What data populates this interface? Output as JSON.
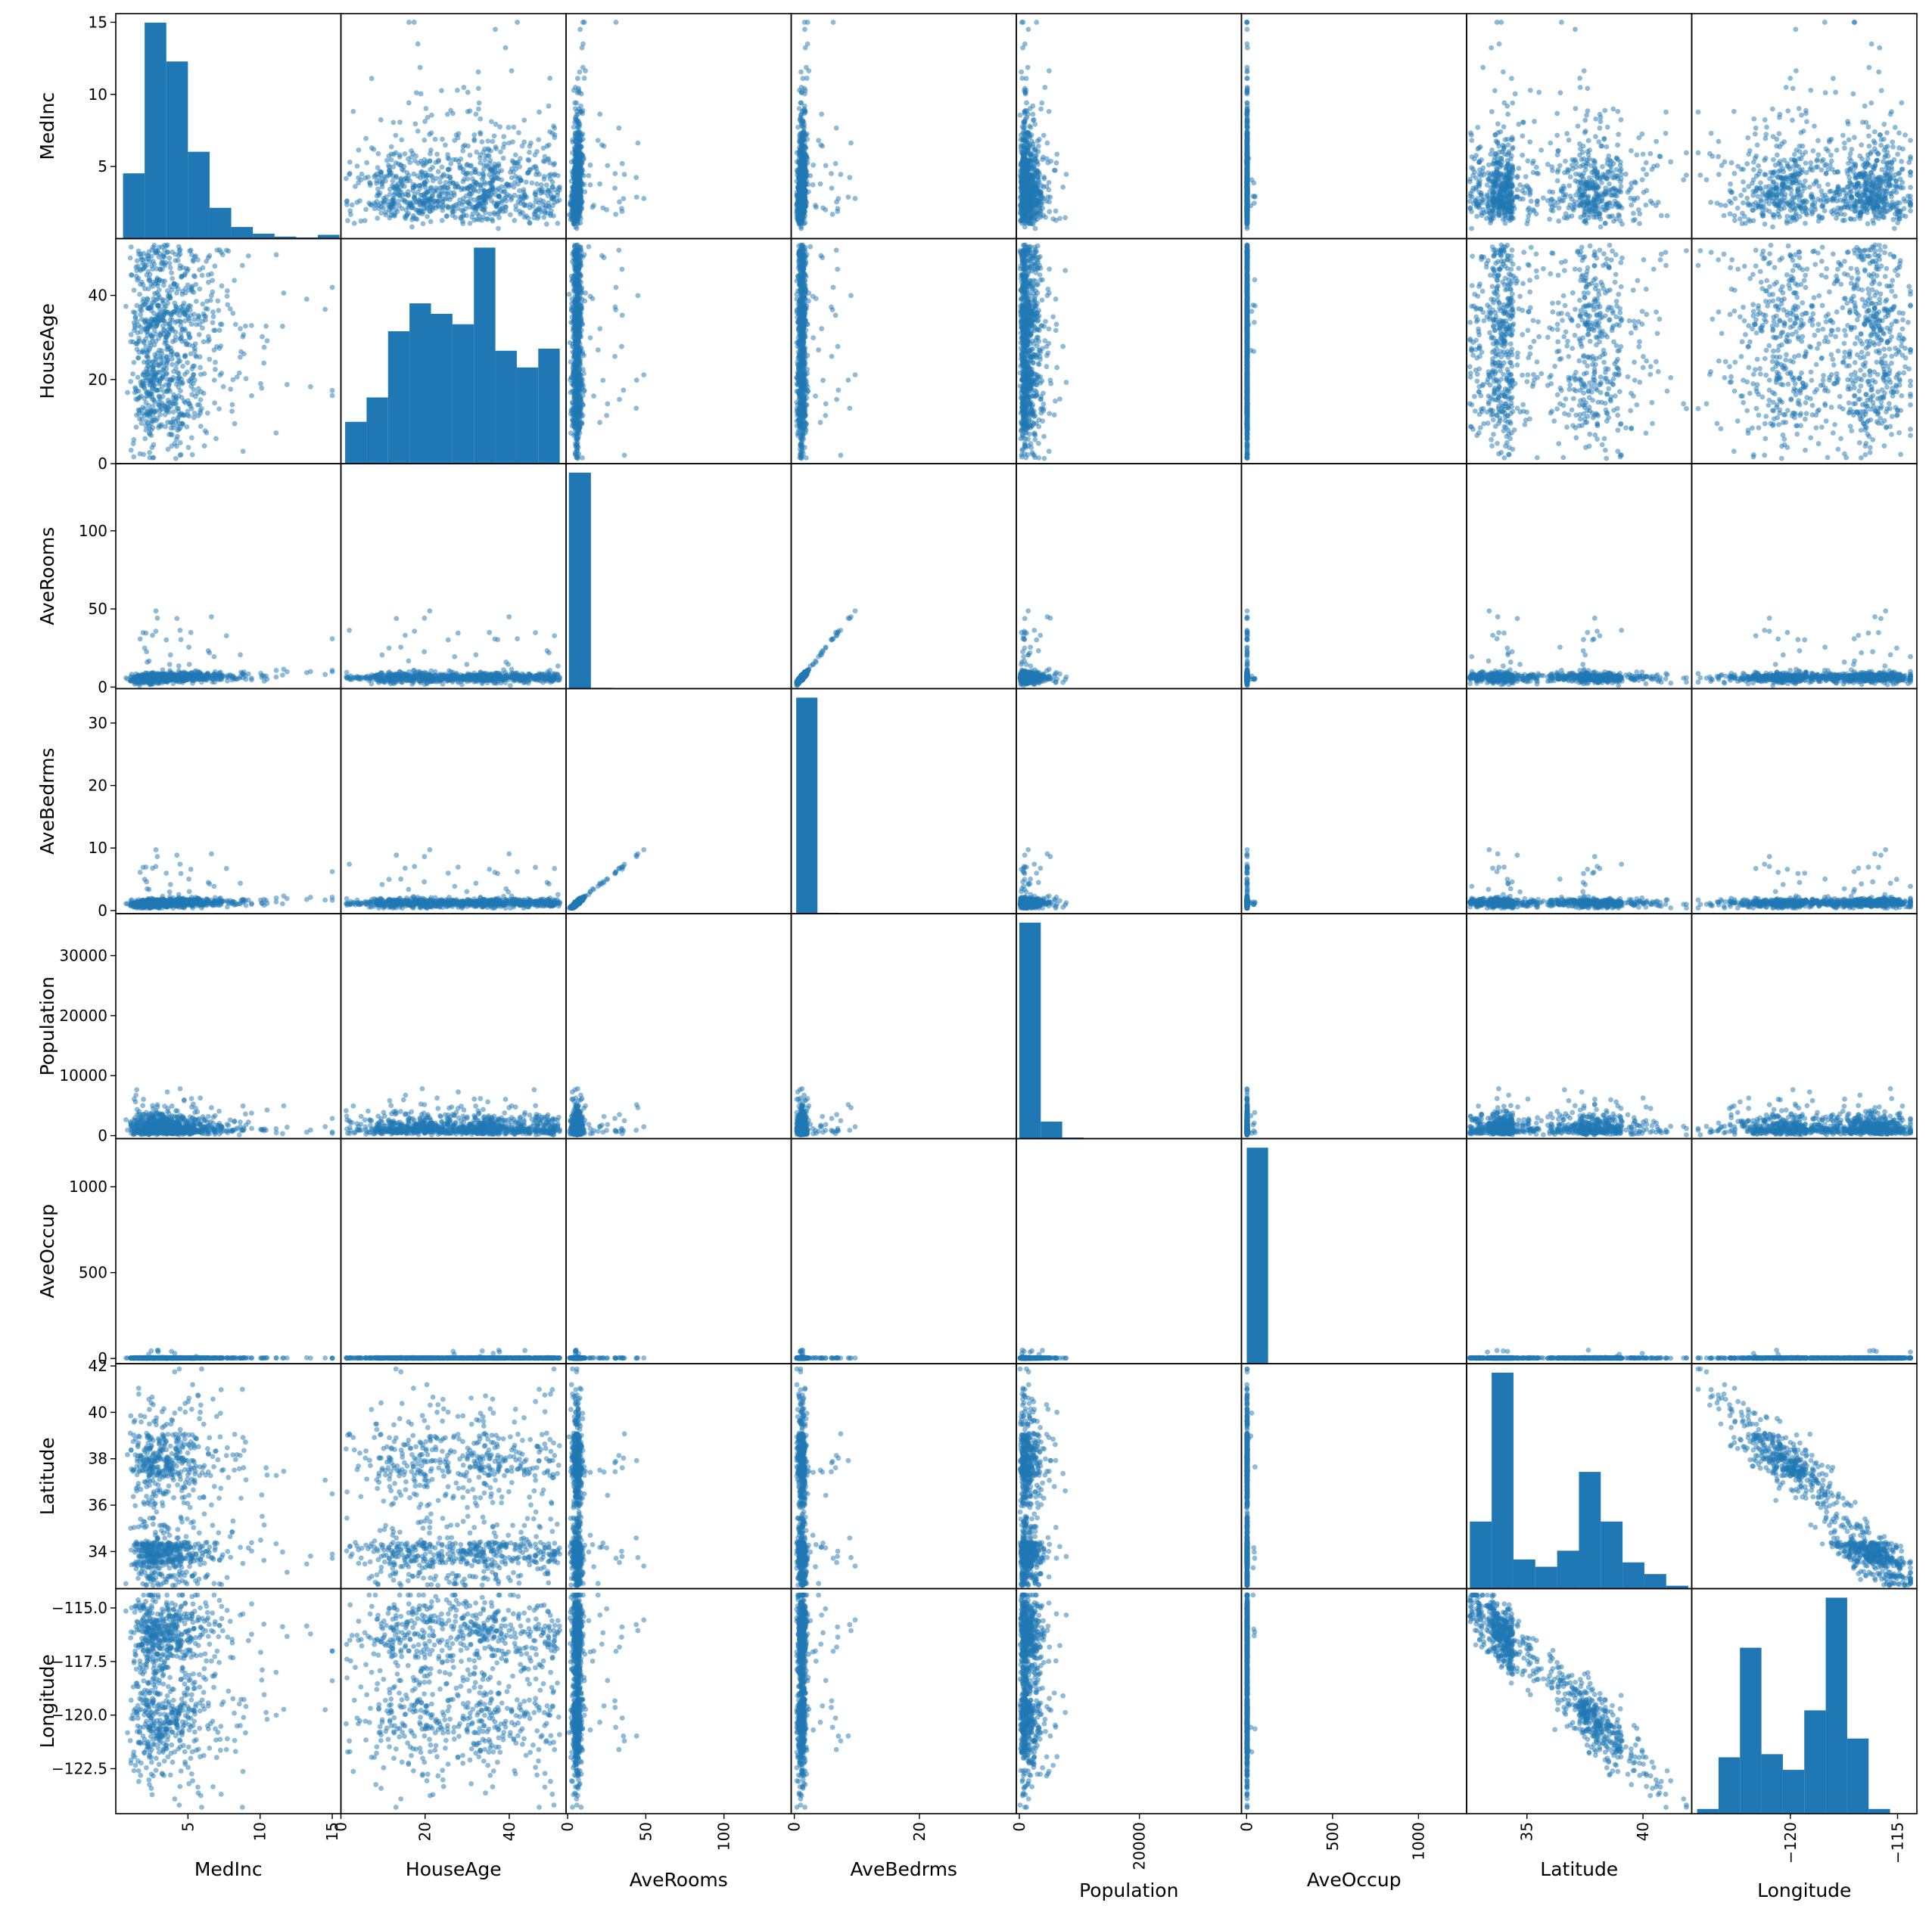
{
  "chart_data": {
    "type": "scatter_matrix",
    "description_of_kind": "pairwise scatter plots with histograms on the diagonal",
    "variables": [
      "MedInc",
      "HouseAge",
      "AveRooms",
      "AveBedrms",
      "Population",
      "AveOccup",
      "Latitude",
      "Longitude"
    ],
    "color": "#1f77b4",
    "point_alpha": 0.5,
    "grid": false,
    "axes": {
      "MedInc": {
        "range": [
          0.0,
          15.6
        ],
        "ticks": [
          5,
          10,
          15
        ],
        "tick_labels": [
          "5",
          "10",
          "15"
        ]
      },
      "HouseAge": {
        "range": [
          0,
          53.5
        ],
        "ticks": [
          0,
          20,
          40
        ],
        "tick_labels": [
          "0",
          "20",
          "40"
        ]
      },
      "AveRooms": {
        "range": [
          -1,
          143
        ],
        "ticks": [
          0,
          50,
          100
        ],
        "tick_labels": [
          "0",
          "50",
          "100"
        ]
      },
      "AveBedrms": {
        "range": [
          -0.5,
          35.5
        ],
        "ticks": [
          0,
          20
        ],
        "tick_labels": [
          "0",
          "20"
        ]
      },
      "Population": {
        "range": [
          -500,
          37000
        ],
        "ticks": [
          0,
          20000
        ],
        "tick_labels": [
          "0",
          "20000"
        ]
      },
      "AveOccup": {
        "range": [
          -30,
          1280
        ],
        "ticks": [
          0,
          500,
          1000
        ],
        "tick_labels": [
          "0",
          "500",
          "1000"
        ]
      },
      "Latitude": {
        "range": [
          32.4,
          42.1
        ],
        "ticks": [
          35,
          40
        ],
        "tick_labels": [
          "35",
          "40"
        ]
      },
      "Longitude": {
        "range": [
          -124.6,
          -114.1
        ],
        "ticks": [
          -120,
          -115
        ],
        "tick_labels": [
          "−120",
          "−115"
        ]
      }
    },
    "y_ticks": {
      "MedInc": {
        "ticks": [
          5,
          10,
          15
        ],
        "tick_labels": [
          "5",
          "10",
          "15"
        ]
      },
      "HouseAge": {
        "ticks": [
          0,
          20,
          40
        ],
        "tick_labels": [
          "0",
          "20",
          "40"
        ]
      },
      "AveRooms": {
        "ticks": [
          0,
          50,
          100
        ],
        "tick_labels": [
          "0",
          "50",
          "100"
        ]
      },
      "AveBedrms": {
        "ticks": [
          0,
          10,
          20,
          30
        ],
        "tick_labels": [
          "0",
          "10",
          "20",
          "30"
        ]
      },
      "Population": {
        "ticks": [
          0,
          10000,
          20000,
          30000
        ],
        "tick_labels": [
          "0",
          "10000",
          "20000",
          "30000"
        ]
      },
      "AveOccup": {
        "ticks": [
          0,
          500,
          1000
        ],
        "tick_labels": [
          "0",
          "500",
          "1000"
        ]
      },
      "Latitude": {
        "ticks": [
          34,
          36,
          38,
          40,
          42
        ],
        "tick_labels": [
          "34",
          "36",
          "38",
          "40",
          "42"
        ]
      },
      "Longitude": {
        "ticks": [
          -115.0,
          -117.5,
          -120.0,
          -122.5
        ],
        "tick_labels": [
          "−115.0",
          "−117.5",
          "−120.0",
          "−122.5"
        ]
      }
    },
    "histograms": {
      "MedInc": {
        "edges": [
          0.5,
          2.0,
          3.5,
          5.0,
          6.5,
          8.0,
          9.5,
          11.0,
          12.5,
          14.0,
          15.5
        ],
        "counts": [
          2247,
          7436,
          6098,
          2990,
          1060,
          400,
          170,
          70,
          40,
          130
        ]
      },
      "HouseAge": {
        "edges": [
          1,
          6.1,
          11.2,
          16.3,
          21.4,
          26.5,
          31.6,
          36.7,
          41.8,
          46.9,
          52
        ],
        "counts": [
          600,
          950,
          1900,
          2300,
          2150,
          2000,
          3100,
          1620,
          1380,
          1650
        ]
      },
      "AveRooms": {
        "edges": [
          0.8,
          14.9,
          29.0,
          43.1,
          57.2,
          71.3,
          85.4,
          99.5,
          113.6,
          127.7,
          141.9
        ],
        "counts": [
          20500,
          80,
          30,
          10,
          5,
          0,
          0,
          0,
          0,
          2
        ]
      },
      "AveBedrms": {
        "edges": [
          0.3,
          3.7,
          7.1,
          10.5,
          13.9,
          17.3,
          20.7,
          24.1,
          27.5,
          30.9,
          34.1
        ],
        "counts": [
          20500,
          80,
          30,
          10,
          5,
          0,
          0,
          1,
          0,
          1
        ]
      },
      "Population": {
        "edges": [
          3,
          3571,
          7139,
          10707,
          14275,
          17843,
          21411,
          24979,
          28547,
          32115,
          35682
        ],
        "counts": [
          19000,
          1500,
          100,
          25,
          8,
          3,
          0,
          0,
          1,
          1
        ]
      },
      "AveOccup": {
        "edges": [
          0.7,
          124.9,
          249.1,
          373.3,
          497.5,
          621.7,
          745.9,
          870.1,
          994.3,
          1118.5,
          1243.3
        ],
        "counts": [
          20635,
          1,
          0,
          1,
          1,
          0,
          0,
          0,
          0,
          1
        ]
      },
      "Latitude": {
        "edges": [
          32.54,
          33.48,
          34.42,
          35.36,
          36.3,
          37.24,
          38.18,
          39.12,
          40.06,
          41.0,
          41.95
        ],
        "counts": [
          2300,
          7400,
          1000,
          750,
          1300,
          4000,
          2300,
          900,
          500,
          100
        ]
      },
      "Longitude": {
        "edges": [
          -124.35,
          -123.35,
          -122.35,
          -121.35,
          -120.35,
          -119.35,
          -118.35,
          -117.35,
          -116.35,
          -115.35,
          -114.31
        ],
        "counts": [
          150,
          1800,
          5300,
          1900,
          1400,
          3300,
          6900,
          2400,
          150,
          0
        ]
      }
    }
  }
}
